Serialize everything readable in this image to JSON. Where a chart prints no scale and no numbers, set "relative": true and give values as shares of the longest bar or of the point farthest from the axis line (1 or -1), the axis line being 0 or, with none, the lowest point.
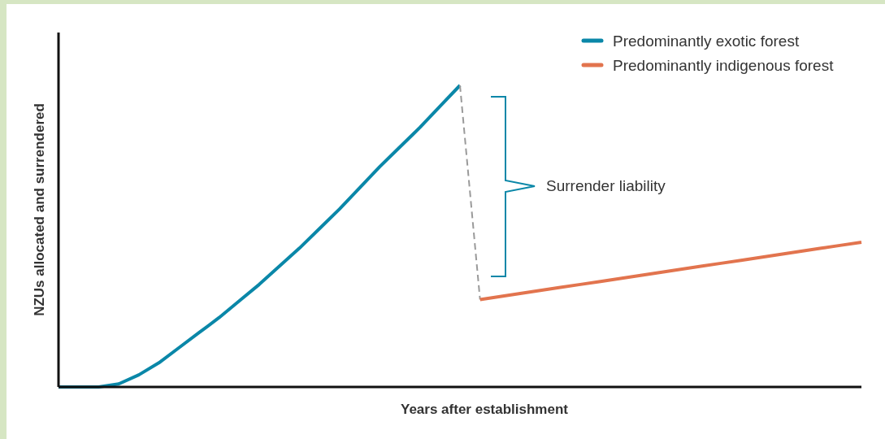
{
  "chart_data": {
    "type": "line",
    "relative": true,
    "xlabel": "Years after establishment",
    "ylabel": "NZUs allocated and surrendered",
    "categories": [
      null,
      null,
      null,
      null,
      null,
      null,
      null,
      null,
      null,
      null,
      null,
      null,
      null,
      null,
      null,
      null,
      null,
      null,
      null,
      null,
      null,
      null,
      null,
      null,
      null,
      null,
      null,
      null,
      null,
      null,
      null,
      null,
      null,
      null,
      null,
      null,
      null,
      null,
      null,
      null,
      null
    ],
    "series": [
      {
        "name": "Predominantly exotic forest",
        "color": "#0a87a8",
        "values": [
          0,
          0,
          0,
          0.01,
          0.04,
          0.08,
          0.13,
          0.18,
          0.23,
          0.285,
          0.34,
          0.4,
          0.46,
          0.525,
          0.59,
          0.66,
          0.73,
          0.795,
          0.86,
          0.93,
          1,
          null,
          null,
          null,
          null,
          null,
          null,
          null,
          null,
          null,
          null,
          null,
          null,
          null,
          null,
          null,
          null,
          null,
          null,
          null,
          null
        ]
      },
      {
        "color": "#9a9a9a",
        "line_style": "dashed",
        "values": [
          null,
          null,
          null,
          null,
          null,
          null,
          null,
          null,
          null,
          null,
          null,
          null,
          null,
          null,
          null,
          null,
          null,
          null,
          null,
          null,
          1,
          0.29,
          null,
          null,
          null,
          null,
          null,
          null,
          null,
          null,
          null,
          null,
          null,
          null,
          null,
          null,
          null,
          null,
          null,
          null,
          null
        ]
      },
      {
        "name": "Predominantly indigenous forest",
        "color": "#e2744e",
        "values": [
          null,
          null,
          null,
          null,
          null,
          null,
          null,
          null,
          null,
          null,
          null,
          null,
          null,
          null,
          null,
          null,
          null,
          null,
          null,
          null,
          null,
          0.29,
          0.3,
          0.31,
          0.32,
          0.33,
          0.34,
          0.35,
          0.36,
          0.37,
          0.38,
          0.39,
          0.4,
          0.41,
          0.42,
          0.43,
          0.44,
          0.45,
          0.46,
          0.47,
          0.48
        ]
      }
    ],
    "annotations": [
      "Surrender liability"
    ],
    "legend": "top right",
    "marker": "none",
    "line_style": "solid"
  }
}
